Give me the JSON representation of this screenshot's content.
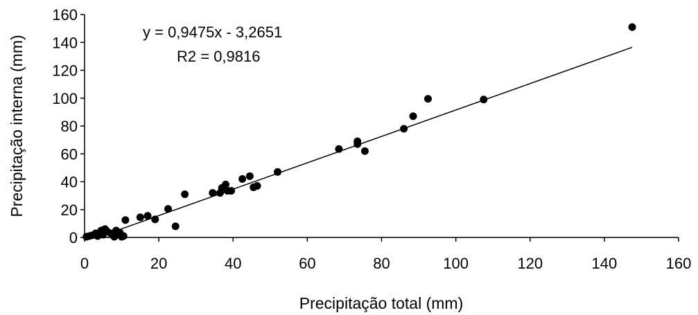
{
  "chart_data": {
    "type": "scatter",
    "title": "",
    "xlabel": "Precipitação total (mm)",
    "ylabel": "Precipitação interna (mm)",
    "xlim": [
      0,
      160
    ],
    "ylim": [
      0,
      160
    ],
    "xticks": [
      "0",
      "20",
      "40",
      "60",
      "80",
      "100",
      "120",
      "140",
      "160"
    ],
    "yticks": [
      "0",
      "20",
      "40",
      "60",
      "80",
      "100",
      "120",
      "140",
      "160"
    ],
    "grid": false,
    "legend": "none",
    "marker_color": "#000000",
    "series": [
      {
        "x": [
          0.5,
          1.2,
          2.0,
          3.0,
          3.5,
          4.0,
          4.5,
          5.0,
          5.5,
          6.0,
          7.0,
          8.0,
          8.5,
          9.0,
          9.5,
          10.0,
          10.5,
          11.0,
          15.0,
          17.0,
          19.0,
          22.5,
          24.5,
          27.0,
          34.5,
          36.5,
          37.0,
          38.0,
          38.5,
          39.5,
          42.5,
          44.5,
          45.5,
          46.5,
          52.0,
          68.5,
          73.5,
          73.5,
          75.5,
          86.0,
          88.5,
          92.5,
          107.5,
          147.5
        ],
        "y": [
          0.5,
          1.0,
          1.5,
          3.0,
          1.0,
          2.0,
          5.0,
          2.0,
          6.0,
          4.5,
          3.0,
          0.5,
          5.0,
          2.0,
          3.5,
          0.5,
          1.0,
          12.5,
          14.5,
          15.5,
          13.0,
          20.5,
          8.0,
          31.0,
          32.0,
          32.0,
          35.5,
          38.0,
          33.5,
          33.5,
          42.0,
          44.0,
          36.0,
          37.0,
          47.0,
          63.5,
          67.0,
          69.0,
          62.0,
          78.0,
          87.0,
          99.5,
          99.0,
          151.0
        ]
      }
    ],
    "trendline": {
      "slope": 0.9475,
      "intercept": -3.2651,
      "x_range": [
        3.5,
        147.5
      ]
    },
    "annotations": [
      "y = 0,9475x - 3,2651",
      "R2 = 0,9816"
    ]
  }
}
